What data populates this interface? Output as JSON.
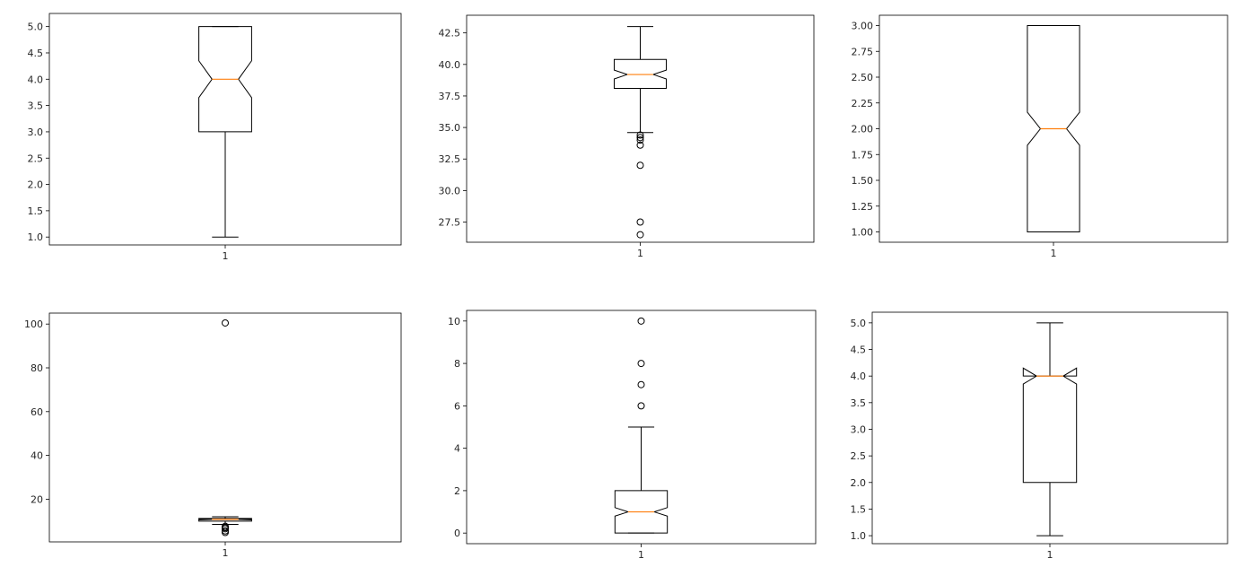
{
  "chart_data": [
    {
      "type": "boxplot",
      "notched": true,
      "categories": [
        "1"
      ],
      "ylim": [
        0.85,
        5.25
      ],
      "yticks": [
        1.0,
        1.5,
        2.0,
        2.5,
        3.0,
        3.5,
        4.0,
        4.5,
        5.0
      ],
      "ytick_labels": [
        "1.0",
        "1.5",
        "2.0",
        "2.5",
        "3.0",
        "3.5",
        "4.0",
        "4.5",
        "5.0"
      ],
      "box": {
        "whisker_low": 1.0,
        "q1": 3.0,
        "median": 4.0,
        "q3": 5.0,
        "whisker_high": 5.0,
        "notch_low": 3.65,
        "notch_high": 4.35
      },
      "outliers": [],
      "colors": {
        "median": "#ff7f0e",
        "box": "#000000"
      }
    },
    {
      "type": "boxplot",
      "notched": true,
      "categories": [
        "1"
      ],
      "ylim": [
        25.9,
        43.9
      ],
      "yticks": [
        27.5,
        30.0,
        32.5,
        35.0,
        37.5,
        40.0,
        42.5
      ],
      "ytick_labels": [
        "27.5",
        "30.0",
        "32.5",
        "35.0",
        "37.5",
        "40.0",
        "42.5"
      ],
      "box": {
        "whisker_low": 34.6,
        "q1": 38.1,
        "median": 39.2,
        "q3": 40.4,
        "whisker_high": 43.0,
        "notch_low": 38.85,
        "notch_high": 39.55
      },
      "outliers": [
        34.4,
        34.2,
        34.0,
        33.6,
        32.0,
        27.5,
        26.5
      ],
      "colors": {
        "median": "#ff7f0e",
        "box": "#000000"
      }
    },
    {
      "type": "boxplot",
      "notched": true,
      "categories": [
        "1"
      ],
      "ylim": [
        0.9,
        3.1
      ],
      "yticks": [
        1.0,
        1.25,
        1.5,
        1.75,
        2.0,
        2.25,
        2.5,
        2.75,
        3.0
      ],
      "ytick_labels": [
        "1.00",
        "1.25",
        "1.50",
        "1.75",
        "2.00",
        "2.25",
        "2.50",
        "2.75",
        "3.00"
      ],
      "box": {
        "whisker_low": 1.0,
        "q1": 1.0,
        "median": 2.0,
        "q3": 3.0,
        "whisker_high": 3.0,
        "notch_low": 1.84,
        "notch_high": 2.16
      },
      "outliers": [],
      "colors": {
        "median": "#ff7f0e",
        "box": "#000000"
      }
    },
    {
      "type": "boxplot",
      "notched": true,
      "categories": [
        "1"
      ],
      "ylim": [
        0.5,
        105
      ],
      "yticks": [
        20,
        40,
        60,
        80,
        100
      ],
      "ytick_labels": [
        "20",
        "40",
        "60",
        "80",
        "100"
      ],
      "box": {
        "whisker_low": 8.5,
        "q1": 10.0,
        "median": 10.8,
        "q3": 11.2,
        "whisker_high": 12.0,
        "notch_low": 10.6,
        "notch_high": 11.0
      },
      "outliers": [
        100.5,
        7.6,
        7.0,
        6.5,
        5.5,
        4.8
      ],
      "colors": {
        "median": "#ff7f0e",
        "box": "#000000"
      }
    },
    {
      "type": "boxplot",
      "notched": true,
      "categories": [
        "1"
      ],
      "ylim": [
        -0.5,
        10.5
      ],
      "yticks": [
        0,
        2,
        4,
        6,
        8,
        10
      ],
      "ytick_labels": [
        "0",
        "2",
        "4",
        "6",
        "8",
        "10"
      ],
      "box": {
        "whisker_low": 0.0,
        "q1": 0.0,
        "median": 1.0,
        "q3": 2.0,
        "whisker_high": 5.0,
        "notch_low": 0.8,
        "notch_high": 1.2
      },
      "outliers": [
        6.0,
        7.0,
        8.0,
        10.0
      ],
      "colors": {
        "median": "#ff7f0e",
        "box": "#000000"
      }
    },
    {
      "type": "boxplot",
      "notched": true,
      "categories": [
        "1"
      ],
      "ylim": [
        0.85,
        5.2
      ],
      "yticks": [
        1.0,
        1.5,
        2.0,
        2.5,
        3.0,
        3.5,
        4.0,
        4.5,
        5.0
      ],
      "ytick_labels": [
        "1.0",
        "1.5",
        "2.0",
        "2.5",
        "3.0",
        "3.5",
        "4.0",
        "4.5",
        "5.0"
      ],
      "box": {
        "whisker_low": 1.0,
        "q1": 2.0,
        "median": 4.0,
        "q3": 4.0,
        "whisker_high": 5.0,
        "notch_low": 3.85,
        "notch_high": 4.15
      },
      "outliers": [],
      "colors": {
        "median": "#ff7f0e",
        "box": "#000000"
      }
    }
  ]
}
